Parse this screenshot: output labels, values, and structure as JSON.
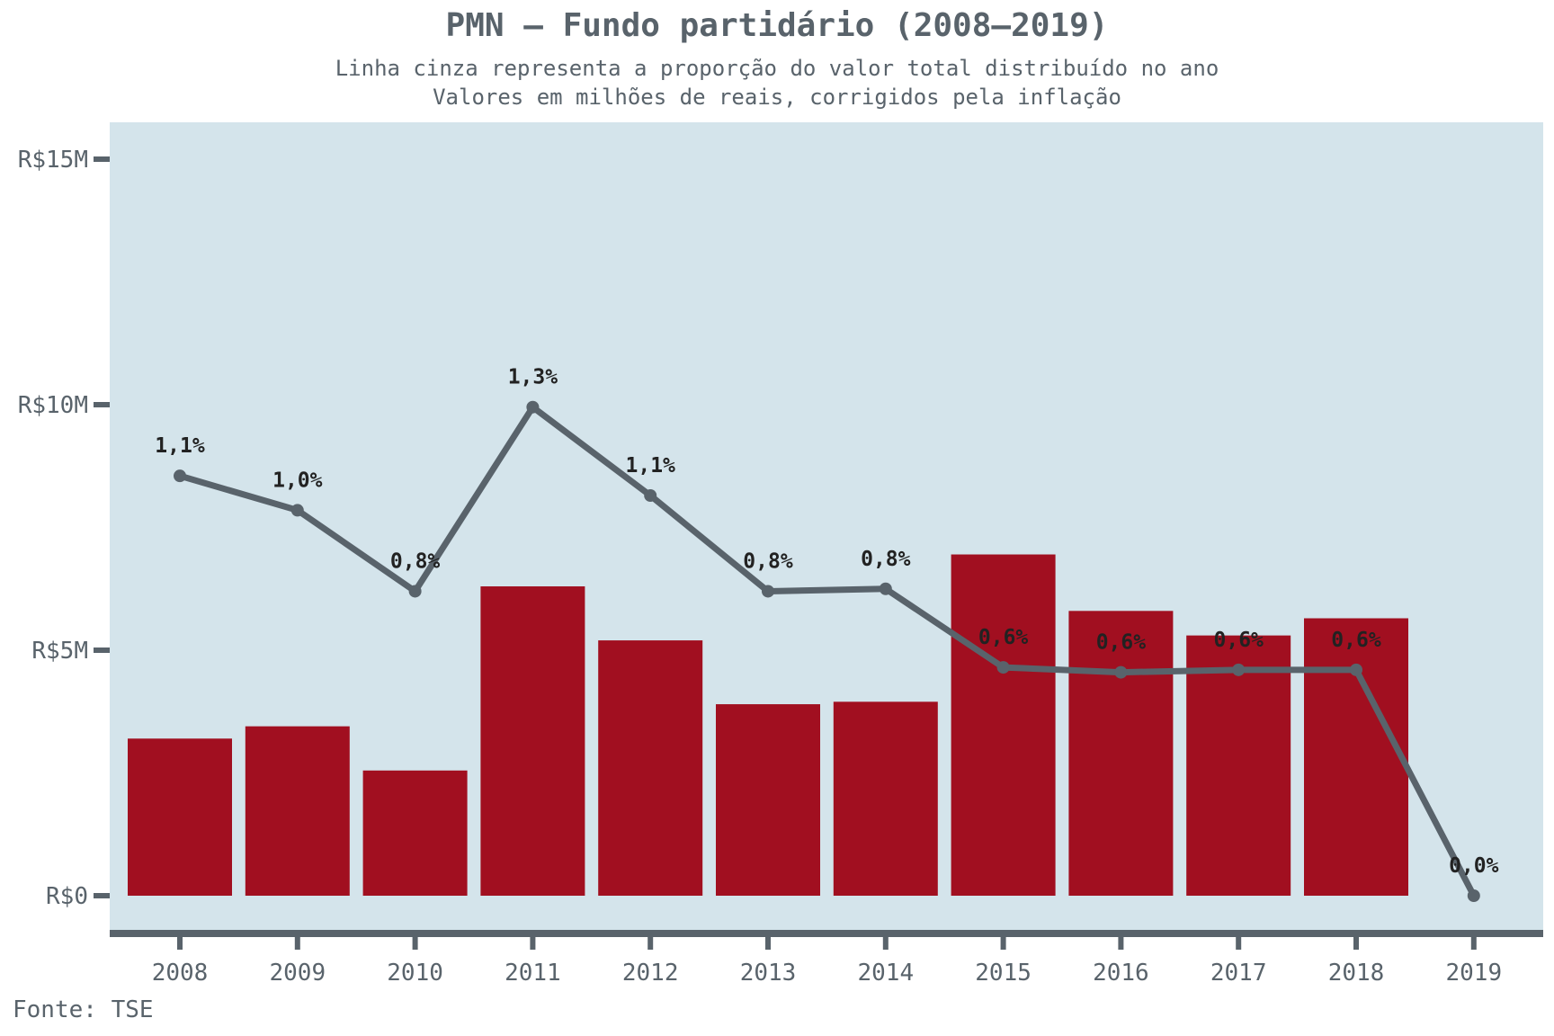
{
  "header": {
    "title": "PMN – Fundo partidário (2008–2019)",
    "subtitle_line1": "Linha cinza representa a proporção do valor total distribuído no ano",
    "subtitle_line2": "Valores em milhões de reais, corrigidos pela inflação"
  },
  "footer": {
    "source": "Fonte: TSE"
  },
  "colors": {
    "panel_background": "#d4e4eb",
    "bar": "#a10f20",
    "line": "#59636b",
    "axis": "#59636b",
    "label_text": "#222222"
  },
  "chart_data": {
    "type": "bar",
    "categories": [
      "2008",
      "2009",
      "2010",
      "2011",
      "2012",
      "2013",
      "2014",
      "2015",
      "2016",
      "2017",
      "2018",
      "2019"
    ],
    "series": [
      {
        "values": [
          3.2,
          3.45,
          2.55,
          6.3,
          5.2,
          3.9,
          3.95,
          6.95,
          5.8,
          5.3,
          5.65,
          0
        ]
      }
    ],
    "line_series": [
      {
        "values": [
          1.1,
          1.0,
          0.8,
          1.3,
          1.1,
          0.8,
          0.8,
          0.6,
          0.6,
          0.6,
          0.6,
          0.0
        ],
        "labels": [
          "1,1%",
          "1,0%",
          "0,8%",
          "1,3%",
          "1,1%",
          "0,8%",
          "0,8%",
          "0,6%",
          "0,6%",
          "0,6%",
          "0,6%",
          "0,0%"
        ],
        "plotted_value_millions": [
          8.55,
          7.85,
          6.2,
          9.95,
          8.15,
          6.2,
          6.25,
          4.65,
          4.55,
          4.6,
          4.6,
          0
        ]
      }
    ],
    "y_ticks": [
      0,
      5,
      10,
      15
    ],
    "y_tick_labels": [
      "R$0",
      "R$5M",
      "R$10M",
      "R$15M"
    ],
    "ylim": [
      -0.75,
      15.75
    ],
    "grid": false
  }
}
